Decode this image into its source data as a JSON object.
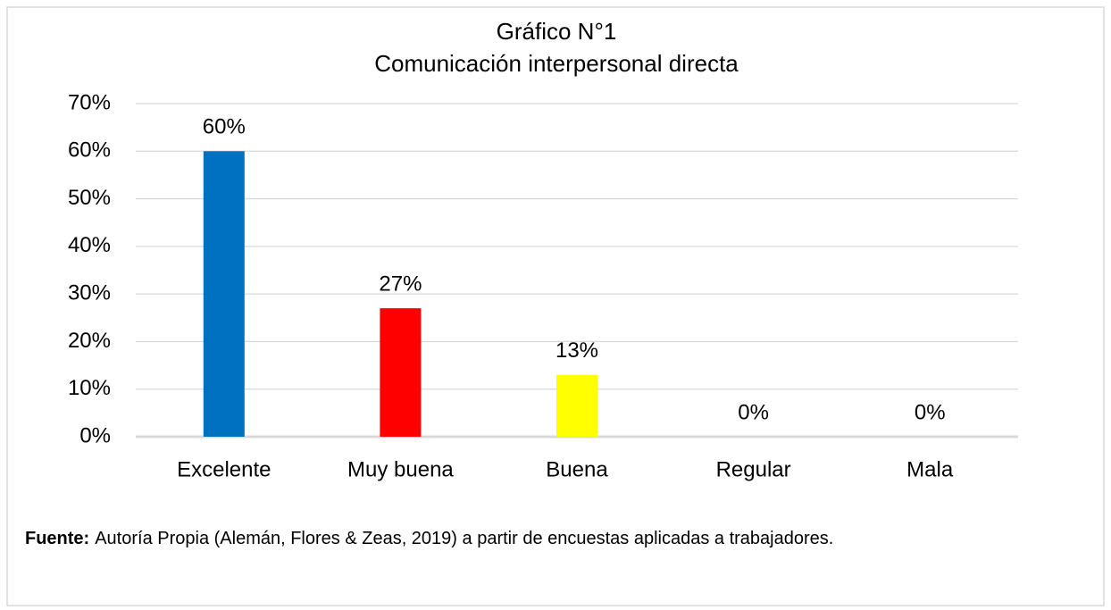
{
  "chart_data": {
    "type": "bar",
    "title": "Gráfico N°1",
    "subtitle": "Comunicación interpersonal directa",
    "categories": [
      "Excelente",
      "Muy buena",
      "Buena",
      "Regular",
      "Mala"
    ],
    "values": [
      60,
      27,
      13,
      0,
      0
    ],
    "value_labels": [
      "60%",
      "27%",
      "13%",
      "0%",
      "0%"
    ],
    "colors": [
      "#0070c0",
      "#ff0000",
      "#ffff00",
      "#a5a5a5",
      "#a5a5a5"
    ],
    "ylim": [
      0,
      70
    ],
    "yticks": [
      {
        "value": 0,
        "label": "0%"
      },
      {
        "value": 10,
        "label": "10%"
      },
      {
        "value": 20,
        "label": "20%"
      },
      {
        "value": 30,
        "label": "30%"
      },
      {
        "value": 40,
        "label": "40%"
      },
      {
        "value": 50,
        "label": "50%"
      },
      {
        "value": 60,
        "label": "60%"
      },
      {
        "value": 70,
        "label": "70%"
      }
    ],
    "grid": true
  },
  "source": {
    "label": "Fuente:",
    "text": "Autoría Propia (Alemán, Flores & Zeas, 2019) a partir de encuestas aplicadas a trabajadores."
  }
}
